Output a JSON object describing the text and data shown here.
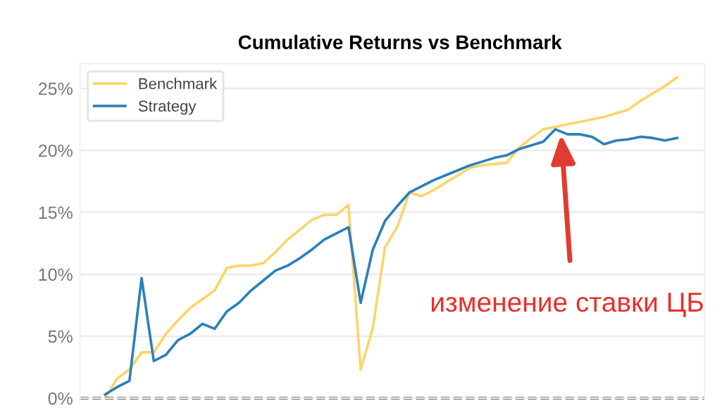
{
  "chart_data": {
    "type": "line",
    "title": "Cumulative Returns vs Benchmark",
    "categories": [
      null,
      null,
      null,
      null,
      null,
      null,
      null,
      null,
      null,
      null,
      null,
      null,
      null,
      null,
      null,
      null,
      null,
      null,
      null,
      null,
      null,
      null,
      null,
      null,
      null,
      null,
      null,
      null,
      null,
      null,
      null,
      null,
      null,
      null,
      null,
      null,
      null,
      null,
      null,
      null,
      null,
      null,
      null,
      null,
      null,
      null,
      null,
      null
    ],
    "series": [
      {
        "name": "Benchmark",
        "color": "#fcd46a",
        "values": [
          0,
          1.6,
          2.3,
          3.7,
          3.7,
          5.2,
          6.3,
          7.3,
          8.0,
          8.7,
          10.5,
          10.7,
          10.7,
          10.9,
          11.8,
          12.8,
          13.6,
          14.4,
          14.8,
          14.8,
          15.6,
          2.3,
          5.7,
          12.2,
          13.8,
          16.6,
          16.3,
          16.8,
          17.4,
          18.0,
          18.6,
          18.8,
          18.9,
          19.0,
          20.2,
          21.0,
          21.7,
          21.9,
          22.1,
          22.3,
          22.5,
          22.7,
          23.0,
          23.3,
          24.0,
          24.6,
          25.2,
          25.9
        ]
      },
      {
        "name": "Strategy",
        "color": "#2b80b9",
        "values": [
          0.3,
          0.9,
          1.4,
          9.7,
          3.0,
          3.5,
          4.7,
          5.2,
          6.0,
          5.6,
          7.0,
          7.7,
          8.7,
          9.5,
          10.3,
          10.7,
          11.3,
          12.0,
          12.8,
          13.3,
          13.8,
          7.7,
          12.0,
          14.3,
          15.5,
          16.6,
          17.1,
          17.6,
          18.0,
          18.4,
          18.8,
          19.1,
          19.4,
          19.6,
          20.1,
          20.4,
          20.7,
          21.7,
          21.3,
          21.3,
          21.1,
          20.5,
          20.8,
          20.9,
          21.1,
          21.0,
          20.8,
          21.0
        ]
      }
    ],
    "ylim": [
      0,
      27
    ],
    "yticks": [
      {
        "value": 0,
        "label": "0%"
      },
      {
        "value": 5,
        "label": "5%"
      },
      {
        "value": 10,
        "label": "10%"
      },
      {
        "value": 15,
        "label": "15%"
      },
      {
        "value": 20,
        "label": "20%"
      },
      {
        "value": 25,
        "label": "25%"
      }
    ],
    "ref_lines": [
      {
        "axis": "y",
        "value": 0,
        "color": "#000000",
        "line_style": "dashed"
      }
    ],
    "annotations": [
      "изменение ставки ЦБ"
    ],
    "grid": true,
    "legend": "top left",
    "marker": "none",
    "line_style": "solid"
  }
}
